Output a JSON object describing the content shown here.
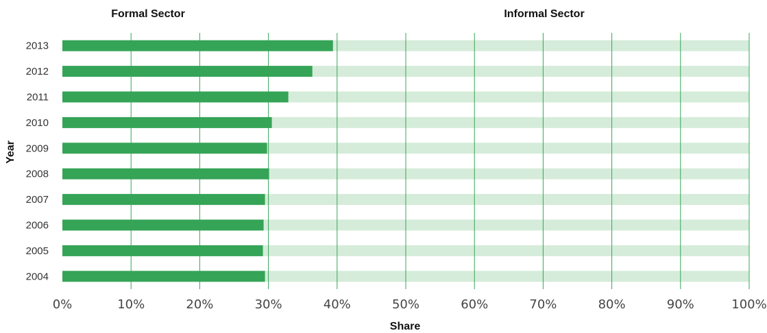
{
  "chart_data": {
    "type": "bar",
    "orientation": "horizontal",
    "stacked": true,
    "categories": [
      "2013",
      "2012",
      "2011",
      "2010",
      "2009",
      "2008",
      "2007",
      "2006",
      "2005",
      "2004"
    ],
    "series": [
      {
        "name": "Formal Sector",
        "values": [
          39.4,
          36.4,
          32.9,
          30.5,
          29.8,
          30.1,
          29.5,
          29.3,
          29.2,
          29.5
        ]
      },
      {
        "name": "Informal Sector",
        "values": [
          60.6,
          63.6,
          67.1,
          69.5,
          70.2,
          69.9,
          70.5,
          70.7,
          70.8,
          70.5
        ]
      }
    ],
    "xlabel": "Share",
    "ylabel": "Year",
    "xlim": [
      0,
      100
    ],
    "xticks": [
      "0%",
      "10%",
      "20%",
      "30%",
      "40%",
      "50%",
      "60%",
      "70%",
      "80%",
      "90%",
      "100%"
    ],
    "grid": "vertical",
    "legend_position": "top"
  },
  "colors": {
    "formal": "#35a457",
    "informal": "#d6ecda",
    "grid": "#35a457"
  }
}
